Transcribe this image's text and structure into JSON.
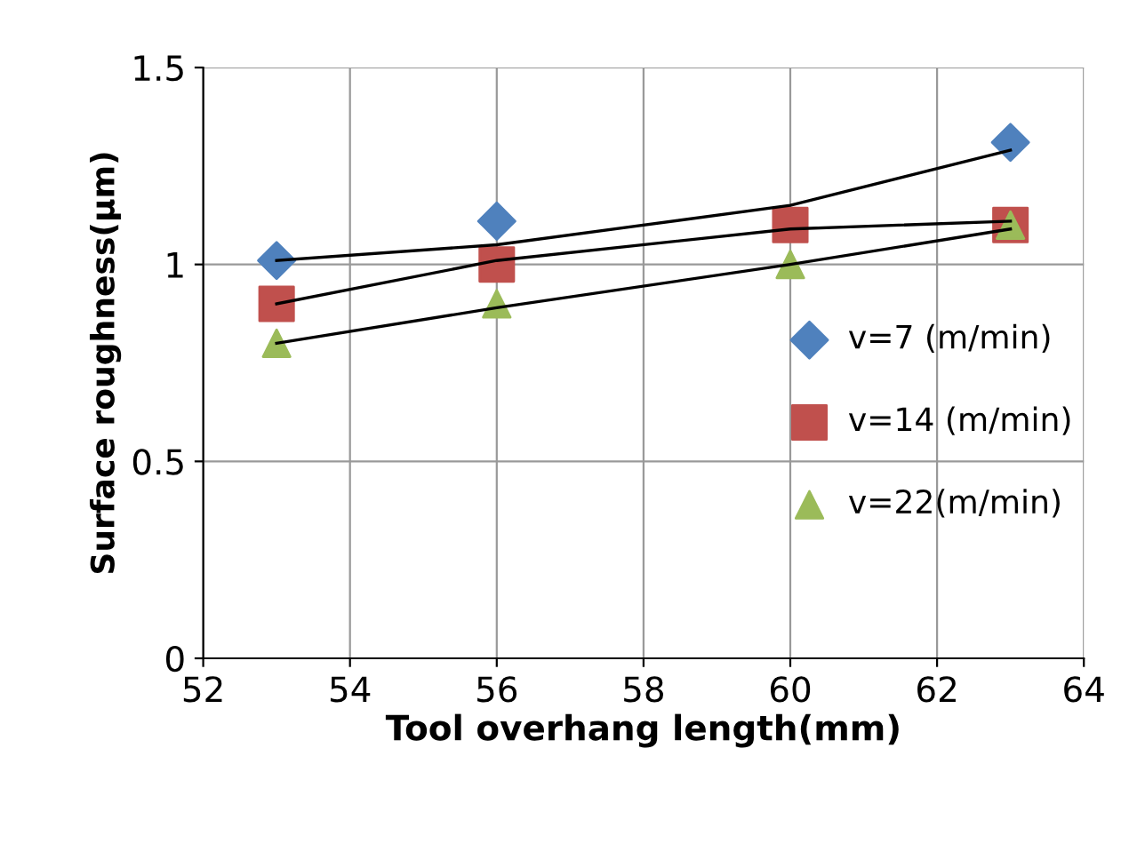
{
  "chart_data": {
    "type": "scatter",
    "xlabel": "Tool overhang length(mm)",
    "ylabel": "Surface roughness(µm)",
    "xlim": [
      52,
      64
    ],
    "xticks": [
      52,
      54,
      56,
      58,
      60,
      62,
      64
    ],
    "ylim": [
      0,
      1.5
    ],
    "yticks": [
      0,
      0.5,
      1,
      1.5
    ],
    "grid": true,
    "legend": "right",
    "series": [
      {
        "name": "v=7 (m/min)",
        "color": "#4f81bd",
        "marker": "diamond",
        "x": [
          53,
          56,
          60,
          63
        ],
        "values": [
          1.01,
          1.11,
          null,
          1.31
        ]
      },
      {
        "name": "v=14 (m/min)",
        "color": "#c0504d",
        "marker": "square",
        "x": [
          53,
          56,
          60,
          63
        ],
        "values": [
          0.9,
          1.0,
          1.1,
          1.1
        ]
      },
      {
        "name": "v=22(m/min)",
        "color": "#9bbb59",
        "marker": "triangle",
        "x": [
          53,
          56,
          60,
          63
        ],
        "values": [
          0.8,
          0.9,
          1.0,
          1.1
        ]
      },
      {
        "type": "line",
        "color": "#000000",
        "marker": "none",
        "line_style": "solid",
        "x": [
          53,
          56,
          60,
          63
        ],
        "values": [
          1.01,
          1.05,
          1.15,
          1.29
        ]
      },
      {
        "type": "line",
        "color": "#000000",
        "marker": "none",
        "line_style": "solid",
        "x": [
          53,
          56,
          60,
          63
        ],
        "values": [
          0.9,
          1.01,
          1.09,
          1.11
        ]
      },
      {
        "type": "line",
        "color": "#000000",
        "marker": "none",
        "line_style": "solid",
        "x": [
          53,
          56,
          60,
          63
        ],
        "values": [
          0.8,
          0.89,
          1.0,
          1.09
        ]
      }
    ]
  }
}
